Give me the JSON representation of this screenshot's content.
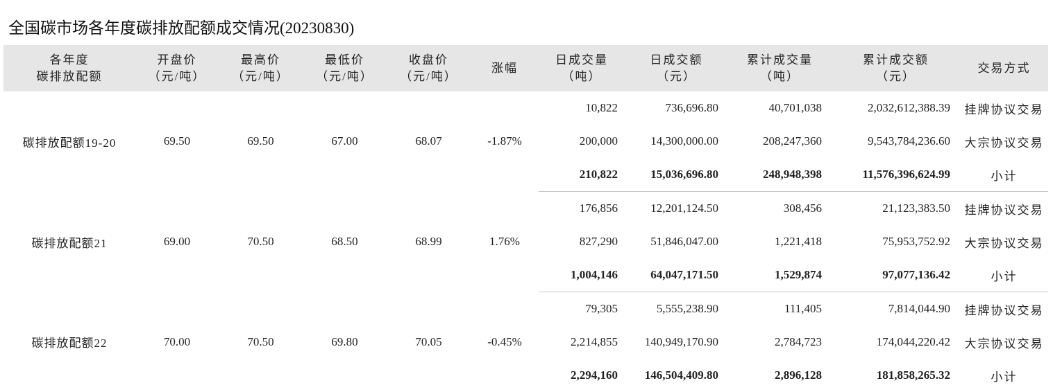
{
  "title": "全国碳市场各年度碳排放配额成交情况(20230830)",
  "headers": [
    {
      "line1": "各年度",
      "line2": "碳排放配额"
    },
    {
      "line1": "开盘价",
      "line2": "（元/吨）"
    },
    {
      "line1": "最高价",
      "line2": "（元/吨）"
    },
    {
      "line1": "最低价",
      "line2": "（元/吨）"
    },
    {
      "line1": "收盘价",
      "line2": "（元/吨）"
    },
    {
      "line1": "涨幅",
      "line2": ""
    },
    {
      "line1": "日成交量",
      "line2": "（吨）"
    },
    {
      "line1": "日成交额",
      "line2": "（元）"
    },
    {
      "line1": "累计成交量",
      "line2": "（吨）"
    },
    {
      "line1": "累计成交额",
      "line2": "（元）"
    },
    {
      "line1": "交易方式",
      "line2": ""
    }
  ],
  "groups": [
    {
      "name": "碳排放配额19-20",
      "open": "69.50",
      "high": "69.50",
      "low": "67.00",
      "close": "68.07",
      "change": "-1.87%",
      "rows": [
        {
          "daily_volume": "10,822",
          "daily_amount": "736,696.80",
          "cum_volume": "40,701,038",
          "cum_amount": "2,032,612,388.39",
          "method": "挂牌协议交易"
        },
        {
          "daily_volume": "200,000",
          "daily_amount": "14,300,000.00",
          "cum_volume": "208,247,360",
          "cum_amount": "9,543,784,236.60",
          "method": "大宗协议交易"
        },
        {
          "daily_volume": "210,822",
          "daily_amount": "15,036,696.80",
          "cum_volume": "248,948,398",
          "cum_amount": "11,576,396,624.99",
          "method": "小计"
        }
      ]
    },
    {
      "name": "碳排放配额21",
      "open": "69.00",
      "high": "70.50",
      "low": "68.50",
      "close": "68.99",
      "change": "1.76%",
      "rows": [
        {
          "daily_volume": "176,856",
          "daily_amount": "12,201,124.50",
          "cum_volume": "308,456",
          "cum_amount": "21,123,383.50",
          "method": "挂牌协议交易"
        },
        {
          "daily_volume": "827,290",
          "daily_amount": "51,846,047.00",
          "cum_volume": "1,221,418",
          "cum_amount": "75,953,752.92",
          "method": "大宗协议交易"
        },
        {
          "daily_volume": "1,004,146",
          "daily_amount": "64,047,171.50",
          "cum_volume": "1,529,874",
          "cum_amount": "97,077,136.42",
          "method": "小计"
        }
      ]
    },
    {
      "name": "碳排放配额22",
      "open": "70.00",
      "high": "70.50",
      "low": "69.80",
      "close": "70.05",
      "change": "-0.45%",
      "rows": [
        {
          "daily_volume": "79,305",
          "daily_amount": "5,555,238.90",
          "cum_volume": "111,405",
          "cum_amount": "7,814,044.90",
          "method": "挂牌协议交易"
        },
        {
          "daily_volume": "2,214,855",
          "daily_amount": "140,949,170.90",
          "cum_volume": "2,784,723",
          "cum_amount": "174,044,220.42",
          "method": "大宗协议交易"
        },
        {
          "daily_volume": "2,294,160",
          "daily_amount": "146,504,409.80",
          "cum_volume": "2,896,128",
          "cum_amount": "181,858,265.32",
          "method": "小计"
        }
      ]
    }
  ]
}
